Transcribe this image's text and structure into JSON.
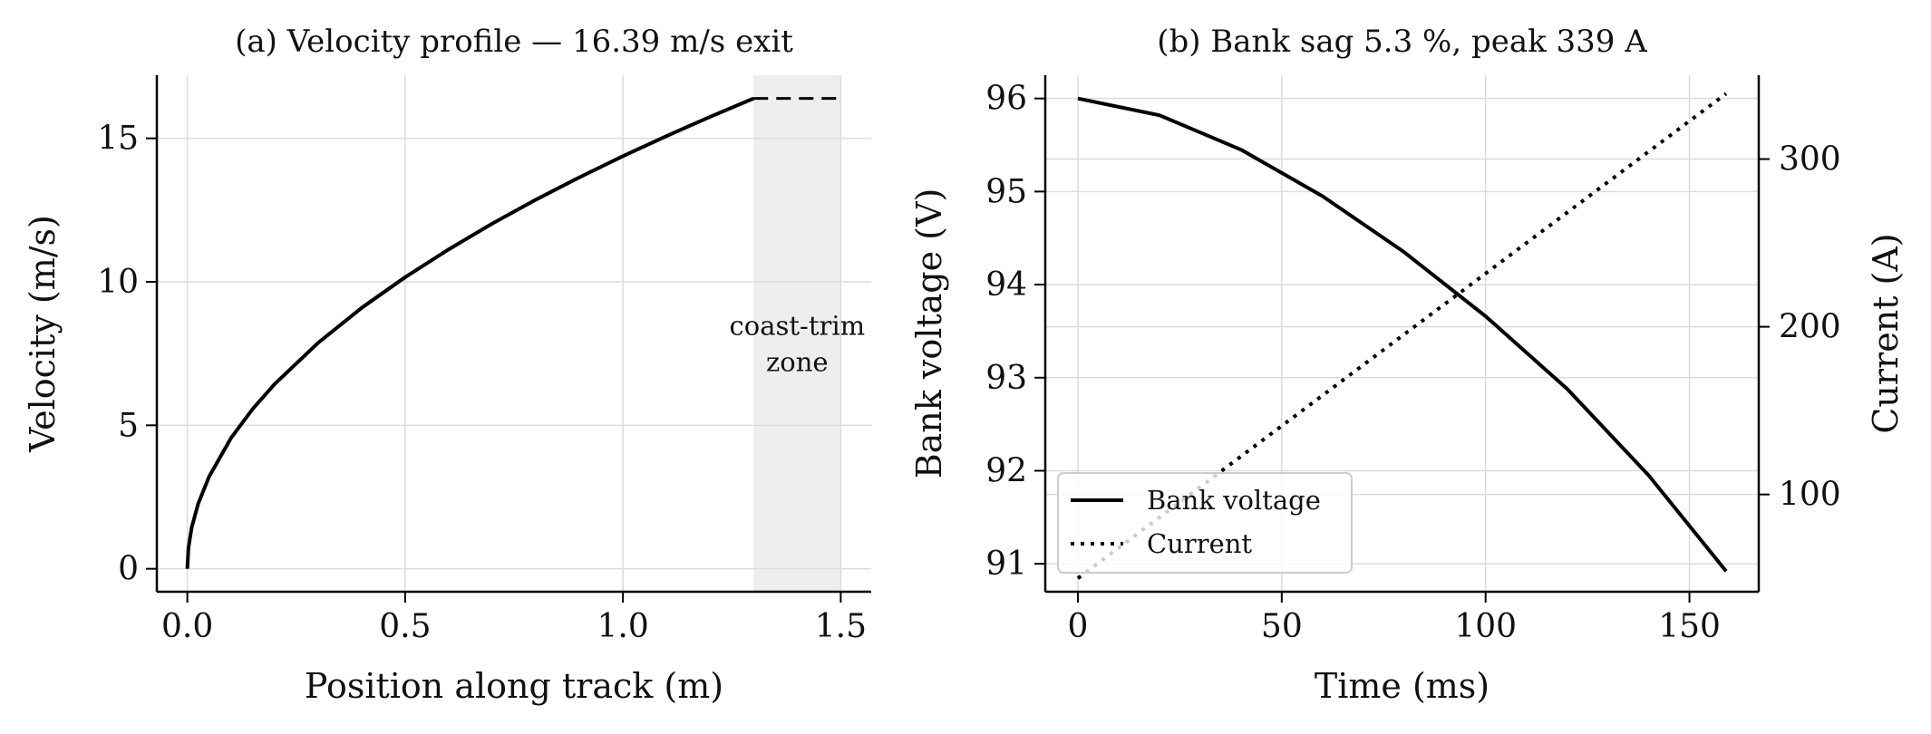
{
  "colors": {
    "line": "#000000",
    "grid": "#dcdcdc",
    "shade": "#eeeeee",
    "legend_border": "#cccccc"
  },
  "chart_data": [
    {
      "type": "line",
      "title": "(a) Velocity profile — 16.39 m/s exit",
      "xlabel": "Position along track (m)",
      "ylabel": "Velocity (m/s)",
      "xlim": [
        -0.07,
        1.57
      ],
      "ylim": [
        -0.8,
        17.2
      ],
      "xticks": [
        0.0,
        0.5,
        1.0,
        1.5
      ],
      "xtick_labels": [
        "0.0",
        "0.5",
        "1.0",
        "1.5"
      ],
      "yticks": [
        0,
        5,
        10,
        15
      ],
      "ytick_labels": [
        "0",
        "5",
        "10",
        "15"
      ],
      "grid": true,
      "series": [
        {
          "style": "solid",
          "x": [
            0.0,
            0.0025,
            0.01,
            0.025,
            0.05,
            0.1,
            0.15,
            0.2,
            0.3,
            0.4,
            0.5,
            0.6,
            0.7,
            0.8,
            0.9,
            1.0,
            1.1,
            1.2,
            1.3
          ],
          "y": [
            0.0,
            0.72,
            1.44,
            2.27,
            3.21,
            4.55,
            5.57,
            6.43,
            7.87,
            9.09,
            10.16,
            11.13,
            12.03,
            12.86,
            13.64,
            14.38,
            15.08,
            15.75,
            16.39
          ]
        },
        {
          "style": "dashed",
          "x": [
            1.3,
            1.5
          ],
          "y": [
            16.39,
            16.39
          ]
        }
      ],
      "shaded_region": {
        "x": [
          1.3,
          1.5
        ],
        "label_lines": [
          "coast-trim",
          "zone"
        ],
        "label_y": 8.0
      }
    },
    {
      "type": "line",
      "title": "(b) Bank sag 5.3 %, peak 339 A",
      "xlabel": "Time (ms)",
      "ylabel": "Bank voltage (V)",
      "y2label": "Current (A)",
      "xlim": [
        -8,
        167
      ],
      "ylim": [
        90.7,
        96.25
      ],
      "y2lim": [
        42,
        350
      ],
      "xticks": [
        0,
        50,
        100,
        150
      ],
      "xtick_labels": [
        "0",
        "50",
        "100",
        "150"
      ],
      "yticks": [
        91,
        92,
        93,
        94,
        95,
        96
      ],
      "ytick_labels": [
        "91",
        "92",
        "93",
        "94",
        "95",
        "96"
      ],
      "y2ticks": [
        100,
        200,
        300
      ],
      "y2tick_labels": [
        "100",
        "200",
        "300"
      ],
      "grid": true,
      "legend_position": "lower-left",
      "series": [
        {
          "name": "Bank voltage",
          "axis": "left",
          "style": "solid",
          "x": [
            0,
            20,
            40,
            60,
            80,
            100,
            120,
            140,
            159
          ],
          "y": [
            96.0,
            95.82,
            95.45,
            94.95,
            94.35,
            93.66,
            92.88,
            91.95,
            90.92
          ]
        },
        {
          "name": "Current",
          "axis": "right",
          "style": "dotted",
          "x": [
            0,
            159
          ],
          "y": [
            50,
            339
          ]
        }
      ]
    }
  ]
}
